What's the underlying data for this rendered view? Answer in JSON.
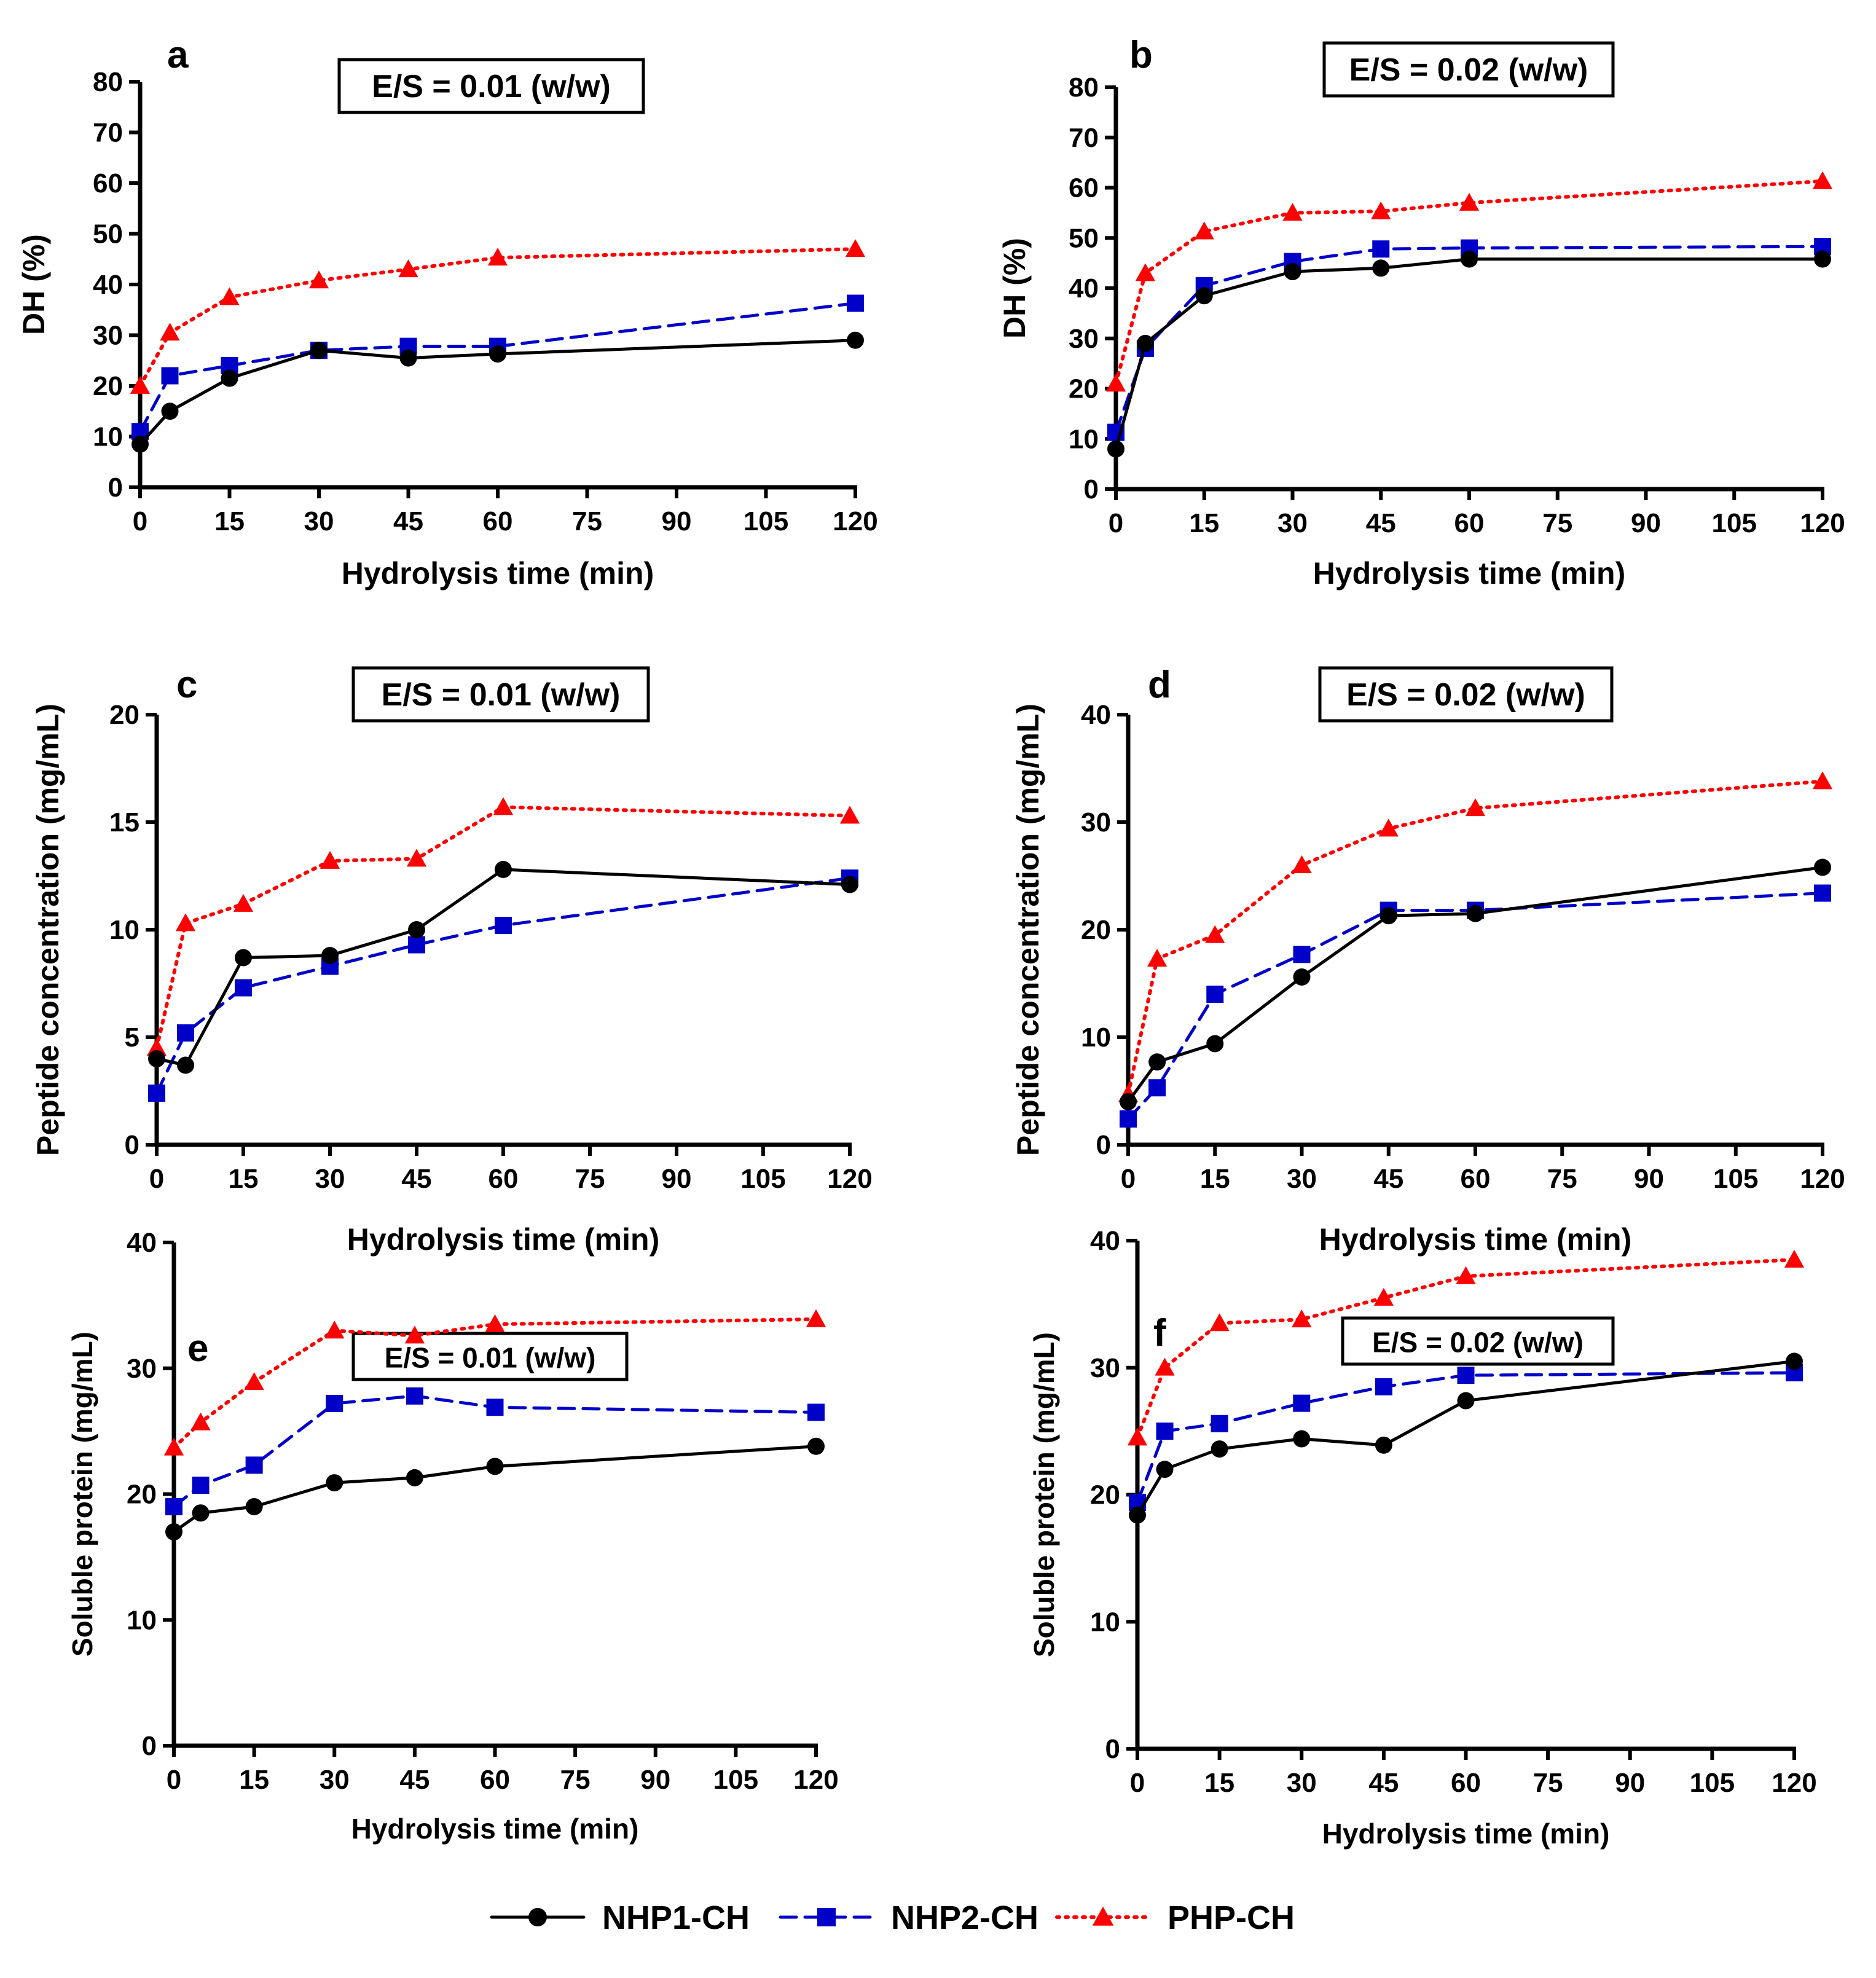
{
  "series_style": {
    "NHP1-CH": {
      "color": "#000000",
      "marker": "circle",
      "dash": "solid"
    },
    "NHP2-CH": {
      "color": "#0000c8",
      "marker": "square",
      "dash": "dashed"
    },
    "PHP-CH": {
      "color": "#ff0000",
      "marker": "triangle",
      "dash": "dotted"
    }
  },
  "legend": {
    "items": [
      {
        "name": "NHP1-CH",
        "label": "NHP1-CH"
      },
      {
        "name": "NHP2-CH",
        "label": "NHP2-CH"
      },
      {
        "name": "PHP-CH",
        "label": "PHP-CH"
      }
    ]
  },
  "chart_data": [
    {
      "panel": "a",
      "type": "line",
      "annotation": "E/S = 0.01 (w/w)",
      "xlabel": "Hydrolysis time (min)",
      "ylabel": "DH (%)",
      "xlim": [
        0,
        120
      ],
      "ylim": [
        0,
        80
      ],
      "xticks": [
        0,
        15,
        30,
        45,
        60,
        75,
        90,
        105,
        120
      ],
      "yticks": [
        0,
        10,
        20,
        30,
        40,
        50,
        60,
        70,
        80
      ],
      "x": [
        0,
        5,
        15,
        30,
        45,
        60,
        120
      ],
      "series": [
        {
          "name": "NHP1-CH",
          "values": [
            8.5,
            15,
            21.5,
            27,
            25.5,
            26.3,
            29
          ]
        },
        {
          "name": "NHP2-CH",
          "values": [
            11,
            22,
            24,
            27,
            27.8,
            27.8,
            36.3
          ]
        },
        {
          "name": "PHP-CH",
          "values": [
            20,
            30.5,
            37.5,
            40.8,
            43,
            45.3,
            47
          ]
        }
      ]
    },
    {
      "panel": "b",
      "type": "line",
      "annotation": "E/S = 0.02 (w/w)",
      "xlabel": "Hydrolysis time (min)",
      "ylabel": "DH (%)",
      "xlim": [
        0,
        120
      ],
      "ylim": [
        0,
        80
      ],
      "xticks": [
        0,
        15,
        30,
        45,
        60,
        75,
        90,
        105,
        120
      ],
      "yticks": [
        0,
        10,
        20,
        30,
        40,
        50,
        60,
        70,
        80
      ],
      "x": [
        0,
        5,
        15,
        30,
        45,
        60,
        120
      ],
      "series": [
        {
          "name": "NHP1-CH",
          "values": [
            8,
            29,
            38.5,
            43.3,
            44,
            45.8,
            45.8
          ]
        },
        {
          "name": "NHP2-CH",
          "values": [
            11.3,
            28,
            40.5,
            45.3,
            47.8,
            48,
            48.3
          ]
        },
        {
          "name": "PHP-CH",
          "values": [
            21,
            43,
            51.3,
            55,
            55.3,
            57,
            61.3
          ]
        }
      ]
    },
    {
      "panel": "c",
      "type": "line",
      "annotation": "E/S = 0.01 (w/w)",
      "xlabel": "Hydrolysis time (min)",
      "ylabel": "Peptide concentration (mg/mL)",
      "xlim": [
        0,
        120
      ],
      "ylim": [
        0,
        20
      ],
      "xticks": [
        0,
        15,
        30,
        45,
        60,
        75,
        90,
        105,
        120
      ],
      "yticks": [
        0,
        5,
        10,
        15,
        20
      ],
      "x": [
        0,
        5,
        15,
        30,
        45,
        60,
        120
      ],
      "series": [
        {
          "name": "NHP1-CH",
          "values": [
            4,
            3.7,
            8.7,
            8.8,
            10,
            12.8,
            12.1
          ]
        },
        {
          "name": "NHP2-CH",
          "values": [
            2.4,
            5.2,
            7.3,
            8.3,
            9.3,
            10.2,
            12.4
          ]
        },
        {
          "name": "PHP-CH",
          "values": [
            4.5,
            10.3,
            11.2,
            13.2,
            13.3,
            15.7,
            15.3
          ]
        }
      ]
    },
    {
      "panel": "d",
      "type": "line",
      "annotation": "E/S = 0.02 (w/w)",
      "xlabel": "Hydrolysis time (min)",
      "ylabel": "Peptide concentration (mg/mL)",
      "xlim": [
        0,
        120
      ],
      "ylim": [
        0,
        40
      ],
      "xticks": [
        0,
        15,
        30,
        45,
        60,
        75,
        90,
        105,
        120
      ],
      "yticks": [
        0,
        10,
        20,
        30,
        40
      ],
      "x": [
        0,
        5,
        15,
        30,
        45,
        60,
        120
      ],
      "series": [
        {
          "name": "NHP1-CH",
          "values": [
            4,
            7.7,
            9.4,
            15.6,
            21.3,
            21.5,
            25.8
          ]
        },
        {
          "name": "NHP2-CH",
          "values": [
            2.4,
            5.3,
            14,
            17.7,
            21.8,
            21.8,
            23.4
          ]
        },
        {
          "name": "PHP-CH",
          "values": [
            4.7,
            17.3,
            19.5,
            26,
            29.4,
            31.3,
            33.8
          ]
        }
      ]
    },
    {
      "panel": "e",
      "type": "line",
      "annotation": "E/S = 0.01 (w/w)",
      "xlabel": "Hydrolysis time (min)",
      "ylabel": "Soluble protein (mg/mL)",
      "xlim": [
        0,
        120
      ],
      "ylim": [
        0,
        40
      ],
      "xticks": [
        0,
        15,
        30,
        45,
        60,
        75,
        90,
        105,
        120
      ],
      "yticks": [
        0,
        10,
        20,
        30,
        40
      ],
      "x": [
        0,
        5,
        15,
        30,
        45,
        60,
        120
      ],
      "series": [
        {
          "name": "NHP1-CH",
          "values": [
            17,
            18.5,
            19,
            20.9,
            21.3,
            22.2,
            23.8
          ]
        },
        {
          "name": "NHP2-CH",
          "values": [
            19,
            20.7,
            22.3,
            27.2,
            27.8,
            26.9,
            26.5
          ]
        },
        {
          "name": "PHP-CH",
          "values": [
            23.7,
            25.7,
            28.9,
            33,
            32.6,
            33.5,
            33.9
          ]
        }
      ]
    },
    {
      "panel": "f",
      "type": "line",
      "annotation": "E/S = 0.02 (w/w)",
      "xlabel": "Hydrolysis time (min)",
      "ylabel": "Soluble protein (mg/mL)",
      "xlim": [
        0,
        120
      ],
      "ylim": [
        0,
        40
      ],
      "xticks": [
        0,
        15,
        30,
        45,
        60,
        75,
        90,
        105,
        120
      ],
      "yticks": [
        0,
        10,
        20,
        30,
        40
      ],
      "x": [
        0,
        5,
        15,
        30,
        45,
        60,
        120
      ],
      "series": [
        {
          "name": "NHP1-CH",
          "values": [
            18.4,
            22,
            23.6,
            24.4,
            23.9,
            27.4,
            30.5
          ]
        },
        {
          "name": "NHP2-CH",
          "values": [
            19.4,
            25,
            25.6,
            27.2,
            28.5,
            29.4,
            29.6
          ]
        },
        {
          "name": "PHP-CH",
          "values": [
            24.5,
            30,
            33.5,
            33.8,
            35.5,
            37.2,
            38.5
          ]
        }
      ]
    }
  ]
}
